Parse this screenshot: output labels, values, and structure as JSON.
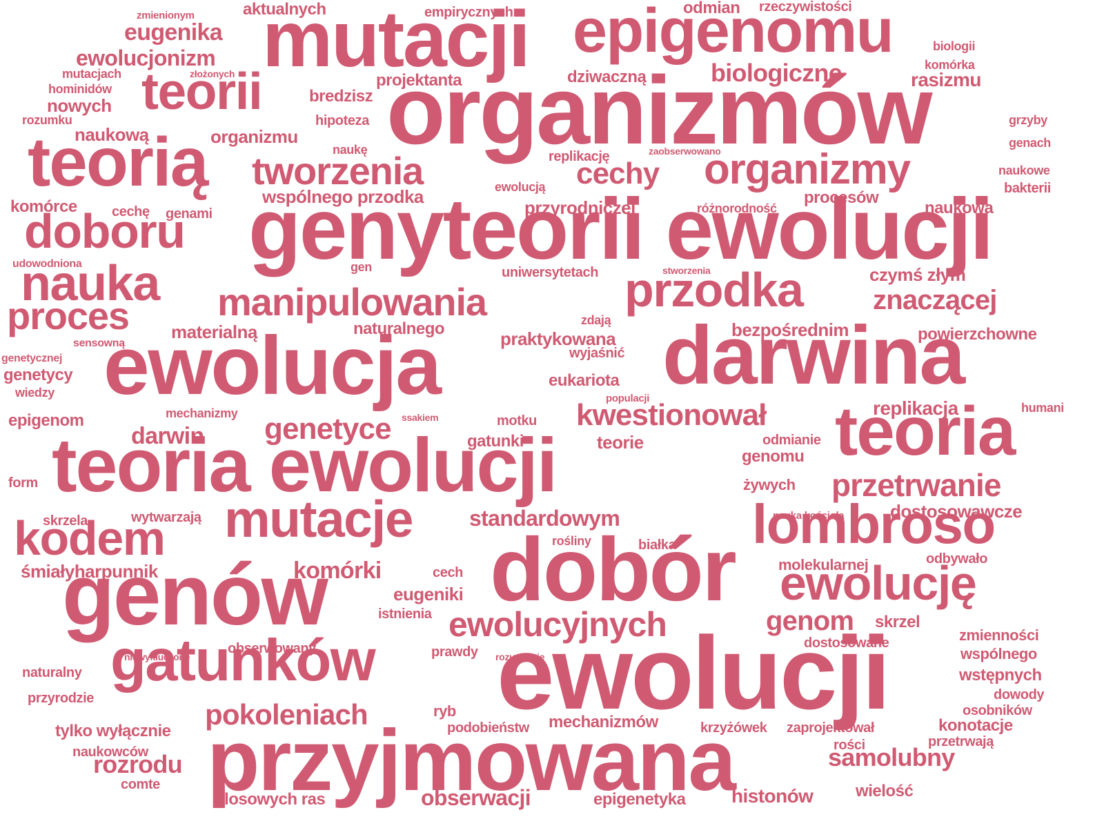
{
  "cloud": {
    "color": "#d05a72",
    "words": [
      {
        "text": "organizmów",
        "weight": 1.0
      },
      {
        "text": "ewolucji",
        "weight": 1.0
      },
      {
        "text": "genyteorii ewolucji",
        "weight": 0.95
      },
      {
        "text": "teoria ewolucji",
        "weight": 0.95
      },
      {
        "text": "mutacji",
        "weight": 0.9
      },
      {
        "text": "ewolucja",
        "weight": 0.9
      },
      {
        "text": "darwina",
        "weight": 0.9
      },
      {
        "text": "przyjmowana",
        "weight": 0.9
      },
      {
        "text": "dobór",
        "weight": 0.9
      },
      {
        "text": "genów",
        "weight": 0.9
      },
      {
        "text": "teorią",
        "weight": 0.75
      },
      {
        "text": "teoria",
        "weight": 0.75
      },
      {
        "text": "epigenomu",
        "weight": 0.75
      },
      {
        "text": "gatunków",
        "weight": 0.7
      },
      {
        "text": "mutacje",
        "weight": 0.65
      },
      {
        "text": "lombroso",
        "weight": 0.65
      },
      {
        "text": "przodka",
        "weight": 0.6
      },
      {
        "text": "teorii",
        "weight": 0.6
      },
      {
        "text": "kodem",
        "weight": 0.6
      },
      {
        "text": "ewolucję",
        "weight": 0.55
      },
      {
        "text": "doboru",
        "weight": 0.55
      },
      {
        "text": "nauka",
        "weight": 0.55
      },
      {
        "text": "organizmy",
        "weight": 0.5
      },
      {
        "text": "tworzenia",
        "weight": 0.5
      },
      {
        "text": "manipulowania",
        "weight": 0.5
      },
      {
        "text": "proces",
        "weight": 0.45
      },
      {
        "text": "ewolucyjnych",
        "weight": 0.45
      },
      {
        "text": "przetrwanie",
        "weight": 0.4
      },
      {
        "text": "kwestionował",
        "weight": 0.4
      },
      {
        "text": "genetyce",
        "weight": 0.4
      },
      {
        "text": "znaczącej",
        "weight": 0.4
      },
      {
        "text": "pokoleniach",
        "weight": 0.4
      },
      {
        "text": "samolubny",
        "weight": 0.35
      },
      {
        "text": "cechy",
        "weight": 0.35
      },
      {
        "text": "rozrodu",
        "weight": 0.35
      },
      {
        "text": "biologiczne",
        "weight": 0.3
      },
      {
        "text": "standardowym",
        "weight": 0.3
      },
      {
        "text": "darwin",
        "weight": 0.3
      },
      {
        "text": "eugenika",
        "weight": 0.3
      },
      {
        "text": "ewolucjonizm",
        "weight": 0.3
      },
      {
        "text": "komórki",
        "weight": 0.3
      },
      {
        "text": "genom",
        "weight": 0.3
      },
      {
        "text": "obserwacji",
        "weight": 0.3
      },
      {
        "text": "mechanizmów",
        "weight": 0.25
      },
      {
        "text": "dostosowawcze",
        "weight": 0.25
      },
      {
        "text": "śmiałyharpunnik",
        "weight": 0.25
      },
      {
        "text": "wspólnego przodka",
        "weight": 0.25
      },
      {
        "text": "bezpośrednim",
        "weight": 0.25
      },
      {
        "text": "histonów",
        "weight": 0.25
      },
      {
        "text": "replikacja",
        "weight": 0.25
      },
      {
        "text": "eugeniki",
        "weight": 0.25
      },
      {
        "text": "materialną",
        "weight": 0.25
      },
      {
        "text": "praktykowana",
        "weight": 0.25
      },
      {
        "text": "przyrodniczej",
        "weight": 0.22
      },
      {
        "text": "czymś złym",
        "weight": 0.22
      },
      {
        "text": "nowych",
        "weight": 0.22
      },
      {
        "text": "naukową",
        "weight": 0.22
      },
      {
        "text": "organizmu",
        "weight": 0.22
      },
      {
        "text": "rasizmu",
        "weight": 0.22
      },
      {
        "text": "aktualnych",
        "weight": 0.2
      },
      {
        "text": "odmian",
        "weight": 0.2
      },
      {
        "text": "projektanta",
        "weight": 0.2
      },
      {
        "text": "dziwaczną",
        "weight": 0.2
      },
      {
        "text": "bredzisz",
        "weight": 0.2
      },
      {
        "text": "komórce",
        "weight": 0.2
      },
      {
        "text": "procesów",
        "weight": 0.2
      },
      {
        "text": "naukowa",
        "weight": 0.2
      },
      {
        "text": "naturalnego",
        "weight": 0.2
      },
      {
        "text": "powierzchowne",
        "weight": 0.2
      },
      {
        "text": "eukariota",
        "weight": 0.2
      },
      {
        "text": "genetycy",
        "weight": 0.2
      },
      {
        "text": "epigenom",
        "weight": 0.2
      },
      {
        "text": "gatunki",
        "weight": 0.2
      },
      {
        "text": "teorie",
        "weight": 0.2
      },
      {
        "text": "genomu",
        "weight": 0.2
      },
      {
        "text": "molekularnej",
        "weight": 0.2
      },
      {
        "text": "zmienności",
        "weight": 0.2
      },
      {
        "text": "wspólnego",
        "weight": 0.2
      },
      {
        "text": "wstępnych",
        "weight": 0.2
      },
      {
        "text": "konotacje",
        "weight": 0.2
      },
      {
        "text": "tylko wyłącznie",
        "weight": 0.2
      },
      {
        "text": "losowych ras",
        "weight": 0.2
      },
      {
        "text": "epigenetyka",
        "weight": 0.2
      },
      {
        "text": "wielość",
        "weight": 0.2
      },
      {
        "text": "empirycznych",
        "weight": 0.15
      },
      {
        "text": "rzeczywistości",
        "weight": 0.15
      },
      {
        "text": "hominidów",
        "weight": 0.15
      },
      {
        "text": "rozumku",
        "weight": 0.15
      },
      {
        "text": "hipoteza",
        "weight": 0.15
      },
      {
        "text": "naukę",
        "weight": 0.15
      },
      {
        "text": "replikację",
        "weight": 0.15
      },
      {
        "text": "cechę",
        "weight": 0.15
      },
      {
        "text": "genami",
        "weight": 0.15
      },
      {
        "text": "ewolucją",
        "weight": 0.15
      },
      {
        "text": "różnorodność",
        "weight": 0.15
      },
      {
        "text": "uniwersytetach",
        "weight": 0.15
      },
      {
        "text": "zdają",
        "weight": 0.15
      },
      {
        "text": "wyjaśnić",
        "weight": 0.15
      },
      {
        "text": "mechanizmy",
        "weight": 0.15
      },
      {
        "text": "motku",
        "weight": 0.15
      },
      {
        "text": "skrzela",
        "weight": 0.15
      },
      {
        "text": "wytwarzają",
        "weight": 0.15
      },
      {
        "text": "rośliny",
        "weight": 0.15
      },
      {
        "text": "białka",
        "weight": 0.15
      },
      {
        "text": "cech",
        "weight": 0.15
      },
      {
        "text": "istnienia",
        "weight": 0.15
      },
      {
        "text": "obserwowany",
        "weight": 0.15
      },
      {
        "text": "prawdy",
        "weight": 0.15
      },
      {
        "text": "dostosowane",
        "weight": 0.15
      },
      {
        "text": "skrzel",
        "weight": 0.15
      },
      {
        "text": "odbywało",
        "weight": 0.15
      },
      {
        "text": "naturalny",
        "weight": 0.15
      },
      {
        "text": "przyrodzie",
        "weight": 0.15
      },
      {
        "text": "ryb",
        "weight": 0.15
      },
      {
        "text": "podobieństw",
        "weight": 0.15
      },
      {
        "text": "krzyżówek",
        "weight": 0.15
      },
      {
        "text": "zaprojektował",
        "weight": 0.15
      },
      {
        "text": "rości",
        "weight": 0.15
      },
      {
        "text": "przetrwają",
        "weight": 0.15
      },
      {
        "text": "osobników",
        "weight": 0.15
      },
      {
        "text": "dowody",
        "weight": 0.15
      },
      {
        "text": "naukowców",
        "weight": 0.15
      },
      {
        "text": "comte",
        "weight": 0.15
      },
      {
        "text": "żywych",
        "weight": 0.15
      },
      {
        "text": "odmianie",
        "weight": 0.15
      },
      {
        "text": "humani",
        "weight": 0.15
      },
      {
        "text": "biologii",
        "weight": 0.15
      },
      {
        "text": "komórka",
        "weight": 0.15
      },
      {
        "text": "grzyby",
        "weight": 0.15
      },
      {
        "text": "genach",
        "weight": 0.15
      },
      {
        "text": "naukowe",
        "weight": 0.15
      },
      {
        "text": "bakterii",
        "weight": 0.15
      },
      {
        "text": "wiedzy",
        "weight": 0.15
      },
      {
        "text": "form",
        "weight": 0.15
      },
      {
        "text": "gen",
        "weight": 0.15
      },
      {
        "text": "zmienionym",
        "weight": 0.1
      },
      {
        "text": "mutacjach",
        "weight": 0.1
      },
      {
        "text": "złożonych",
        "weight": 0.1
      },
      {
        "text": "zaobserwowano",
        "weight": 0.1
      },
      {
        "text": "udowodniona",
        "weight": 0.1
      },
      {
        "text": "stworzenia",
        "weight": 0.1
      },
      {
        "text": "sensowną",
        "weight": 0.1
      },
      {
        "text": "genetycznej",
        "weight": 0.1
      },
      {
        "text": "populacji",
        "weight": 0.1
      },
      {
        "text": "ssakiem",
        "weight": 0.1
      },
      {
        "text": "niewykluczone",
        "weight": 0.1
      },
      {
        "text": "rozumienie",
        "weight": 0.1
      },
      {
        "text": "nauka kościoła",
        "weight": 0.1
      }
    ]
  }
}
